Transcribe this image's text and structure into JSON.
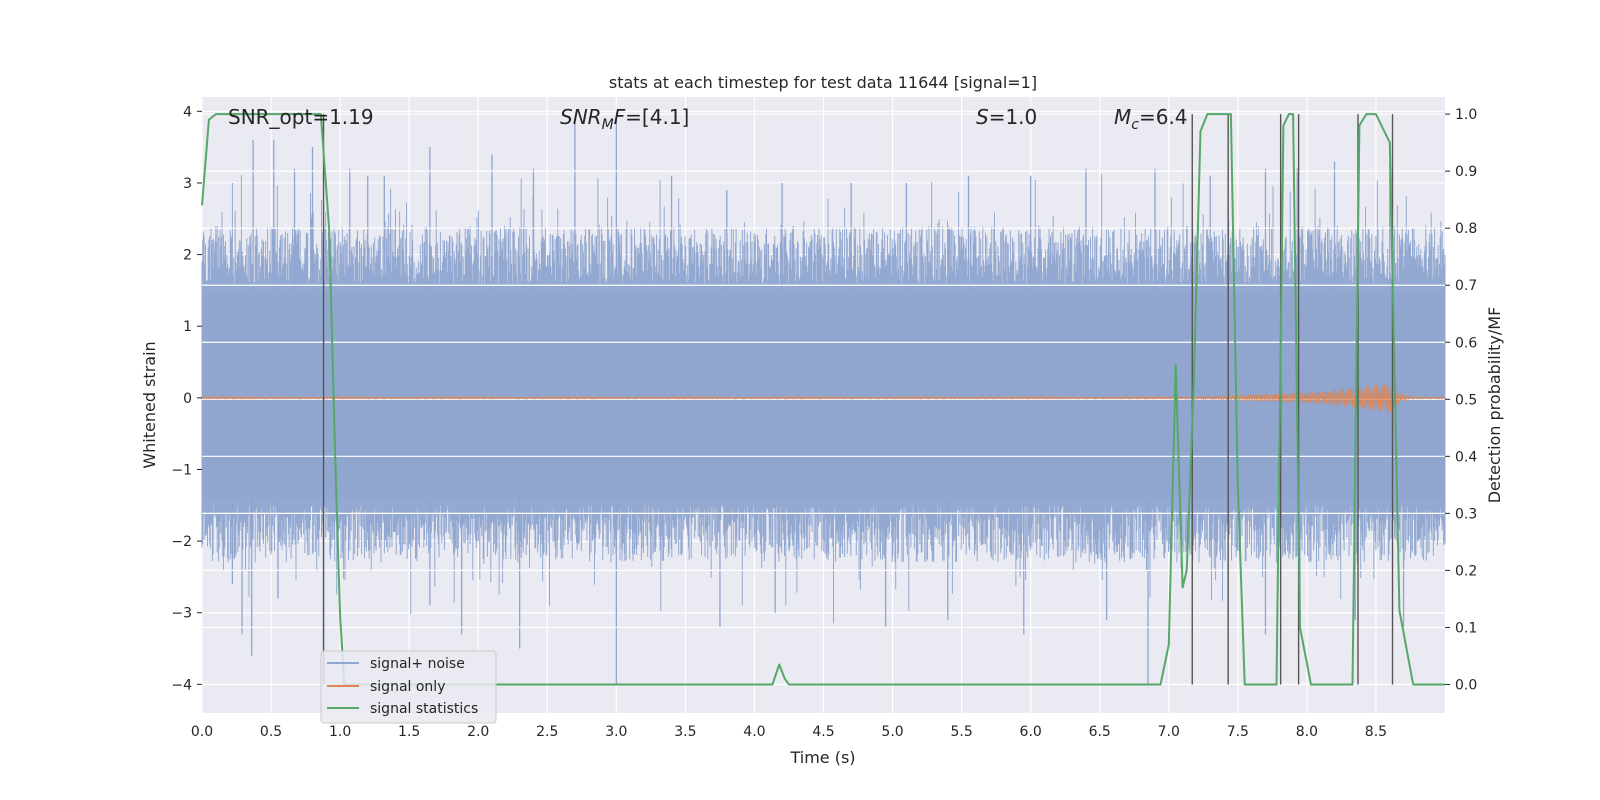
{
  "chart_data": {
    "type": "line",
    "title": "stats at each timestep for test data 11644 [signal=1]",
    "xlabel": "Time (s)",
    "ylabel": "Whitened strain",
    "ylabel_right": "Detection probability/MF",
    "xlim": [
      0,
      9.0
    ],
    "ylim": [
      -4.4,
      4.2
    ],
    "ylim_right": [
      -0.05,
      1.03
    ],
    "x_ticks": [
      "0.0",
      "0.5",
      "1.0",
      "1.5",
      "2.0",
      "2.5",
      "3.0",
      "3.5",
      "4.0",
      "4.5",
      "5.0",
      "5.5",
      "6.0",
      "6.5",
      "7.0",
      "7.5",
      "8.0",
      "8.5"
    ],
    "y_ticks": [
      "−4",
      "−3",
      "−2",
      "−1",
      "0",
      "1",
      "2",
      "3",
      "4"
    ],
    "y_ticks_right": [
      "0.0",
      "0.1",
      "0.2",
      "0.3",
      "0.4",
      "0.5",
      "0.6",
      "0.7",
      "0.8",
      "0.9",
      "1.0"
    ],
    "grid": true,
    "legend_position": "lower-left",
    "annotations": {
      "snr_opt": "SNR_opt=1.19",
      "snr_mf_main": "SNR",
      "snr_mf_sub": "M",
      "snr_mf_rest": "F=[4.1]",
      "s_main": "S",
      "s_rest": "=1.0",
      "mc_main": "M",
      "mc_sub": "c",
      "mc_rest": "=6.4"
    },
    "series": [
      {
        "name": "signal+ noise",
        "color": "#8fa5cf",
        "style": "dense noisy strain, approximately ±1.7 with spikes",
        "peaks": [
          [
            0.37,
            3.6
          ],
          [
            0.52,
            3.6
          ],
          [
            0.67,
            3.2
          ],
          [
            0.8,
            3.5
          ],
          [
            1.07,
            3.2
          ],
          [
            1.2,
            3.1
          ],
          [
            1.32,
            3.1
          ],
          [
            1.65,
            3.5
          ],
          [
            2.1,
            3.4
          ],
          [
            2.4,
            3.2
          ],
          [
            2.7,
            3.9
          ],
          [
            3.0,
            3.9
          ],
          [
            3.4,
            3.1
          ],
          [
            3.8,
            2.9
          ],
          [
            4.2,
            3.0
          ],
          [
            4.7,
            3.0
          ],
          [
            5.1,
            3.0
          ],
          [
            5.55,
            3.1
          ],
          [
            6.0,
            3.1
          ],
          [
            6.4,
            3.2
          ],
          [
            6.9,
            3.2
          ],
          [
            7.3,
            3.1
          ],
          [
            7.7,
            3.2
          ],
          [
            7.93,
            3.2
          ],
          [
            8.2,
            3.3
          ],
          [
            8.6,
            3.3
          ]
        ],
        "troughs": [
          [
            0.22,
            -2.6
          ],
          [
            0.29,
            -3.3
          ],
          [
            0.36,
            -3.6
          ],
          [
            0.55,
            -2.8
          ],
          [
            0.88,
            -3.9
          ],
          [
            1.65,
            -2.9
          ],
          [
            1.88,
            -3.3
          ],
          [
            2.3,
            -3.5
          ],
          [
            3.0,
            -4.0
          ],
          [
            3.75,
            -3.2
          ],
          [
            4.15,
            -3.0
          ],
          [
            4.95,
            -3.2
          ],
          [
            5.4,
            -3.1
          ],
          [
            5.95,
            -3.3
          ],
          [
            6.55,
            -3.1
          ],
          [
            6.85,
            -4.0
          ],
          [
            7.7,
            -3.3
          ],
          [
            7.95,
            -3.2
          ],
          [
            8.35,
            -3.1
          ],
          [
            8.7,
            -3.2
          ]
        ]
      },
      {
        "name": "signal only",
        "color": "#dd8452",
        "amplitude_start_x": 6.8,
        "amplitude_max": 0.2,
        "merger_x": 8.62
      },
      {
        "name": "signal statistics",
        "color": "#55a868",
        "axis": "right",
        "x": [
          0.0,
          0.05,
          0.1,
          0.15,
          0.2,
          0.86,
          0.92,
          0.97,
          1.0,
          1.03,
          1.08,
          4.1,
          4.13,
          4.18,
          4.22,
          4.25,
          4.3,
          4.35,
          6.94,
          7.0,
          7.05,
          7.1,
          7.13,
          7.18,
          7.23,
          7.28,
          7.45,
          7.5,
          7.55,
          7.6,
          7.65,
          7.78,
          7.83,
          7.87,
          7.9,
          7.95,
          8.03,
          8.28,
          8.33,
          8.38,
          8.43,
          8.5,
          8.6,
          8.67,
          8.77,
          8.8,
          9.0
        ],
        "y": [
          0.84,
          0.99,
          1.0,
          1.0,
          1.0,
          1.0,
          0.8,
          0.35,
          0.12,
          0.0,
          0.0,
          0.0,
          0.0,
          0.035,
          0.01,
          0.0,
          0.0,
          0.0,
          0.0,
          0.07,
          0.56,
          0.17,
          0.2,
          0.52,
          0.97,
          1.0,
          1.0,
          0.35,
          0.0,
          0.0,
          0.0,
          0.0,
          0.98,
          1.0,
          1.0,
          0.1,
          0.0,
          0.0,
          0.0,
          0.98,
          1.0,
          1.0,
          0.95,
          0.13,
          0.0,
          0.0,
          0.0
        ]
      }
    ],
    "vertical_markers": [
      0.88,
      7.17,
      7.43,
      7.81,
      7.94,
      8.37,
      8.62
    ]
  }
}
